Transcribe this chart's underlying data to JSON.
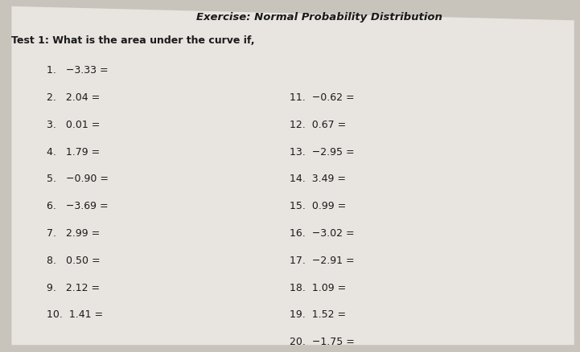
{
  "title": "Exercise: Normal Probability Distribution",
  "subtitle": "Test 1: What is the area under the curve if,",
  "left_items": [
    "1.   −3.33 =",
    "2.   2.04 =",
    "3.   0.01 =",
    "4.   1.79 =",
    "5.   −0.90 =",
    "6.   −3.69 =",
    "7.   2.99 =",
    "8.   0.50 =",
    "9.   2.12 =",
    "10.  1.41 ="
  ],
  "right_items": [
    "11.  −0.62 =",
    "12.  0.67 =",
    "13.  −2.95 =",
    "14.  3.49 =",
    "15.  0.99 =",
    "16.  −3.02 =",
    "17.  −2.91 =",
    "18.  1.09 =",
    "19.  1.52 =",
    "20.  −1.75 ="
  ],
  "bg_color": "#c8c4bc",
  "paper_color": "#e8e4df",
  "text_color": "#1a1a1a",
  "title_fontsize": 9.5,
  "subtitle_fontsize": 9,
  "item_fontsize": 9
}
